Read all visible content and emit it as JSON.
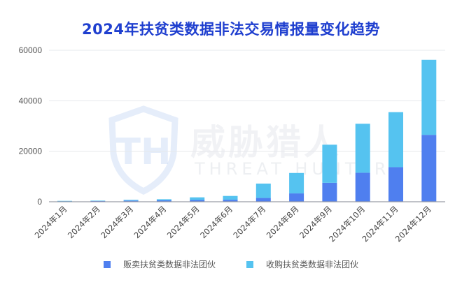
{
  "chart_data": {
    "type": "bar",
    "stacked": true,
    "title": "2024年扶贫类数据非法交易情报量变化趋势",
    "xlabel": "",
    "ylabel": "",
    "ylim": [
      0,
      60000
    ],
    "yticks": [
      0,
      20000,
      40000,
      60000
    ],
    "grid": true,
    "legend_position": "bottom",
    "categories": [
      "2024年1月",
      "2024年2月",
      "2024年3月",
      "2024年4月",
      "2024年5月",
      "2024年6月",
      "2024年7月",
      "2024年8月",
      "2024年9月",
      "2024年10月",
      "2024年11月",
      "2024年12月"
    ],
    "series": [
      {
        "name": "贩卖扶贫类数据非法团伙",
        "color": "#4f7fef",
        "values": [
          250,
          300,
          450,
          550,
          700,
          800,
          1500,
          3300,
          7500,
          11500,
          13700,
          26500
        ]
      },
      {
        "name": "收购扶贫类数据非法团伙",
        "color": "#55c3f0",
        "values": [
          100,
          150,
          300,
          450,
          1050,
          1500,
          5700,
          8100,
          15100,
          19400,
          21800,
          29700
        ]
      }
    ]
  },
  "watermark": {
    "cn": "威胁猎人",
    "en": "THREAT HUNTER",
    "logo": "TH"
  }
}
